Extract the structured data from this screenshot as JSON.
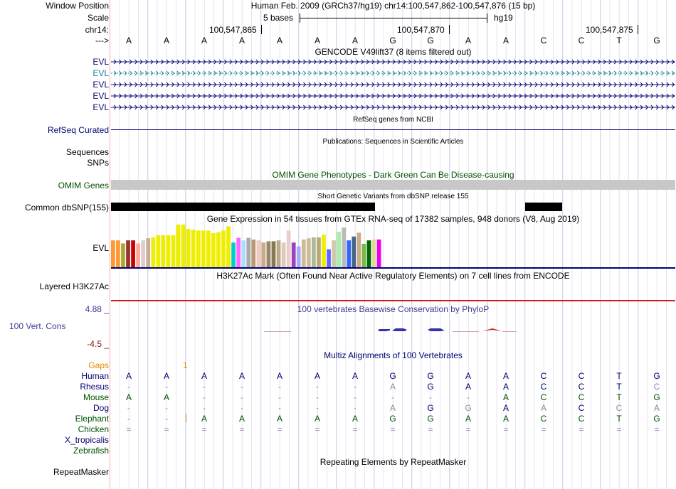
{
  "header": {
    "window_position_label": "Window Position",
    "window_position_value": "Human Feb. 2009 (GRCh37/hg19)   chr14:100,547,862-100,547,876 (15 bp)",
    "scale_label": "Scale",
    "scale_bases": "5 bases",
    "assembly": "hg19",
    "chrom_label": "chr14:",
    "coords": [
      "100,547,865",
      "100,547,870",
      "100,547,875"
    ],
    "strand_label": "--->"
  },
  "sequence": [
    "A",
    "A",
    "A",
    "A",
    "A",
    "A",
    "A",
    "G",
    "G",
    "A",
    "A",
    "C",
    "C",
    "T",
    "G"
  ],
  "tracks": {
    "gencode": {
      "title": "GENCODE V49lift37 (8 items filtered out)",
      "rows": [
        "EVL",
        "EVL",
        "EVL",
        "EVL",
        "EVL"
      ],
      "highlight_row": 1
    },
    "refseq": {
      "title": "RefSeq genes from NCBI",
      "label": "RefSeq Curated"
    },
    "publications": {
      "title": "Publications: Sequences in Scientific Articles",
      "label1": "Sequences",
      "label2": "SNPs"
    },
    "omim": {
      "title": "OMIM Gene Phenotypes - Dark Green Can Be Disease-causing",
      "label": "OMIM Genes"
    },
    "dbsnp": {
      "title": "Short Genetic Variants from dbSNP release 155",
      "label": "Common dbSNP(155)"
    },
    "gtex": {
      "title": "Gene Expression in 54 tissues from GTEx RNA-seq of 17382 samples, 948 donors (V8, Aug 2019)",
      "label": "EVL",
      "bar_levels": [
        0.63,
        0.63,
        0.56,
        0.63,
        0.63,
        0.56,
        0.63,
        0.68,
        0.7,
        0.75,
        0.75,
        0.75,
        0.75,
        1.0,
        1.0,
        0.9,
        0.88,
        0.86,
        0.86,
        0.86,
        0.8,
        0.82,
        0.86,
        0.96,
        0.58,
        0.69,
        0.63,
        0.69,
        0.65,
        0.63,
        0.58,
        0.61,
        0.61,
        0.63,
        0.58,
        0.86,
        0.58,
        0.49,
        0.65,
        0.68,
        0.7,
        0.7,
        0.76,
        0.42,
        0.63,
        0.83,
        0.93,
        0.63,
        0.72,
        0.81,
        0.55,
        0.63,
        0.65,
        0.65
      ],
      "bar_colors": [
        "#FF9933",
        "#FF9933",
        "#AAAA33",
        "#993333",
        "#CC0000",
        "#FFAA99",
        "#DDCCCC",
        "#CCAA99",
        "#EEEE00",
        "#EEEE00",
        "#EEEE00",
        "#EEEE00",
        "#EEEE00",
        "#EEEE00",
        "#EEEE00",
        "#EEEE00",
        "#EEEE00",
        "#EEEE00",
        "#EEEE00",
        "#EEEE00",
        "#EEEE00",
        "#EEEE00",
        "#EEEE00",
        "#EEEE00",
        "#00CCCC",
        "#FF66FF",
        "#AADDFF",
        "#AAAAAA",
        "#BB9977",
        "#EECCBB",
        "#CCAA88",
        "#998866",
        "#887755",
        "#BBAA88",
        "#DDCCBB",
        "#EECCCC",
        "#9944BB",
        "#AAAAFF",
        "#CCBB99",
        "#CCBB99",
        "#AABB99",
        "#BBAA77",
        "#EEEE00",
        "#6666FF",
        "#CCCCAA",
        "#AAEEAA",
        "#BBBBBB",
        "#3366FF",
        "#446688",
        "#CCAA88",
        "#77BB44",
        "#006600",
        "#DDDD99",
        "#EE00EE"
      ]
    },
    "h3k27ac": {
      "title": "H3K27Ac Mark (Often Found Near Active Regulatory Elements) on 7 cell lines from ENCODE",
      "label": "Layered H3K27Ac"
    },
    "phylop": {
      "title": "100 vertebrates Basewise Conservation by PhyloP",
      "label": "100 Vert. Cons",
      "max": "4.88 _",
      "min": "-4.5 _"
    },
    "multiz": {
      "title": "Multiz Alignments of 100 Vertebrates",
      "gaps_label": "Gaps",
      "gap_marker": "1",
      "species": [
        {
          "name": "Human",
          "color": "#000070",
          "bases": [
            "A",
            "A",
            "A",
            "A",
            "A",
            "A",
            "A",
            "G",
            "G",
            "A",
            "A",
            "C",
            "C",
            "T",
            "G"
          ]
        },
        {
          "name": "Rhesus",
          "color": "#000070",
          "bases": [
            "-",
            "-",
            "-",
            "-",
            "-",
            "-",
            "-",
            "A",
            "G",
            "A",
            "A",
            "C",
            "C",
            "T",
            "C"
          ]
        },
        {
          "name": "Mouse",
          "color": "#005000",
          "bases": [
            "A",
            "A",
            "-",
            "-",
            "-",
            "-",
            "-",
            "-",
            "-",
            "-",
            "A",
            "C",
            "C",
            "T",
            "G"
          ]
        },
        {
          "name": "Dog",
          "color": "#000070",
          "bases": [
            "-",
            "-",
            "-",
            "-",
            "-",
            "-",
            "-",
            "A",
            "G",
            "G",
            "A",
            "A",
            "C",
            "C",
            "A"
          ]
        },
        {
          "name": "Elephant",
          "color": "#005000",
          "bases": [
            "-",
            "-",
            "A",
            "A",
            "A",
            "A",
            "A",
            "G",
            "G",
            "A",
            "A",
            "C",
            "C",
            "T",
            "G"
          ]
        },
        {
          "name": "Chicken",
          "color": "#005000",
          "bases": [
            "=",
            "=",
            "=",
            "=",
            "=",
            "=",
            "=",
            "=",
            "=",
            "=",
            "=",
            "=",
            "=",
            "=",
            "="
          ]
        },
        {
          "name": "X_tropicalis",
          "color": "#000070",
          "bases": []
        },
        {
          "name": "Zebrafish",
          "color": "#005000",
          "bases": []
        }
      ]
    },
    "repeatmasker": {
      "title": "Repeating Elements by RepeatMasker",
      "label": "RepeatMasker"
    }
  },
  "colors": {
    "gencode_line": "#0c0c78",
    "gencode_highlight": "#1e7fa0",
    "refseq_line": "#0c0c78",
    "omim_bar": "#c8c8c8",
    "dbsnp_bar": "#000000",
    "h3k27ac_line": "#cc2020",
    "grid_line": "#d8d8ee",
    "side_border": "#e0a0a0"
  }
}
